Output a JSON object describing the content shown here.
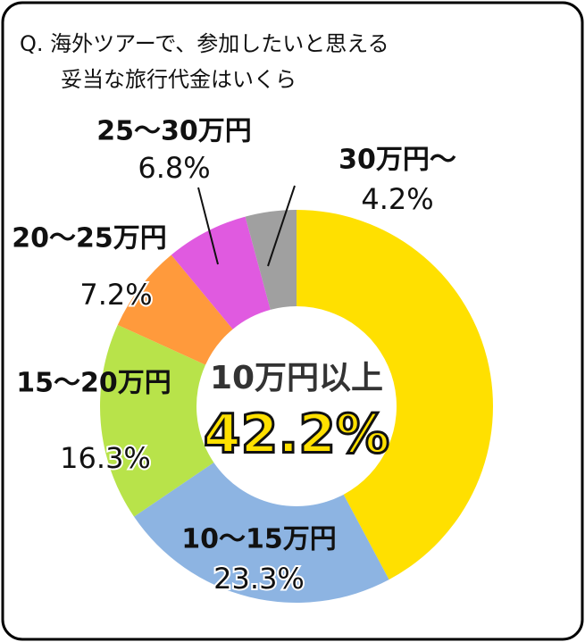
{
  "chart_data": {
    "type": "donut",
    "title": [
      "Q. 海外ツアーで、参加したいと思える",
      "妥当な旅行代金はいくら"
    ],
    "categories": [
      "10万円以上",
      "10～15万円",
      "15～20万円",
      "20～25万円",
      "25～30万円",
      "30万円～"
    ],
    "values": [
      42.2,
      23.3,
      16.3,
      7.2,
      6.8,
      4.2
    ],
    "value_labels": [
      "42.2%",
      "23.3%",
      "16.3%",
      "7.2%",
      "6.8%",
      "4.2%"
    ],
    "colors": [
      "#ffe000",
      "#8db4e2",
      "#b8e34a",
      "#ff9a3c",
      "#e05ae0",
      "#a0a0a0"
    ]
  }
}
